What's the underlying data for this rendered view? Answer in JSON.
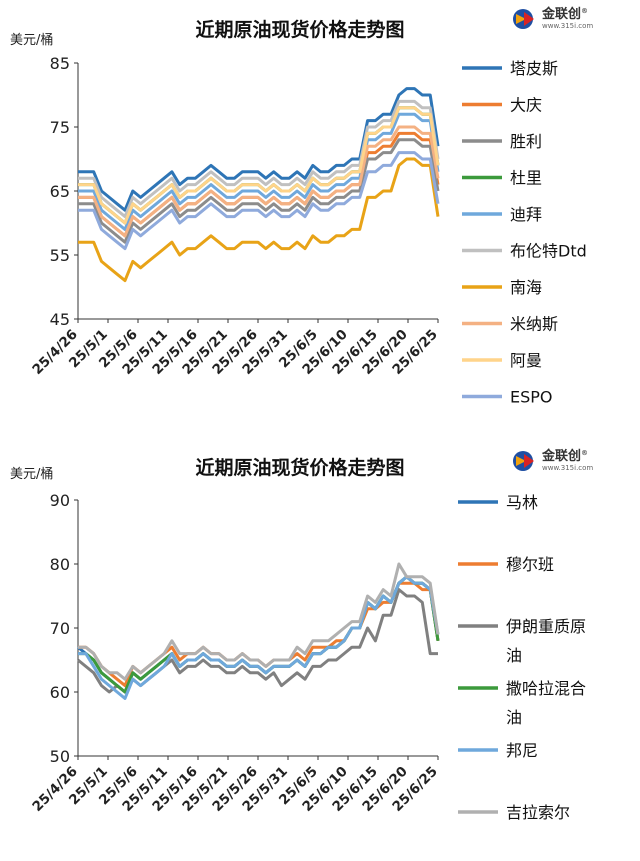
{
  "logo": {
    "text": "金联创",
    "url": "www.315i.com",
    "reg": "®"
  },
  "chart_data": [
    {
      "type": "line",
      "title": "近期原油现货价格走势图",
      "ylabel": "美元/桶",
      "xlabel": "",
      "ylim": [
        45,
        85
      ],
      "yticks": [
        45,
        55,
        65,
        75,
        85
      ],
      "legend_position": "right",
      "grid": false,
      "x_tick_labels": [
        "25/4/26",
        "25/5/1",
        "25/5/6",
        "25/5/11",
        "25/5/16",
        "25/5/21",
        "25/5/26",
        "25/5/31",
        "25/6/5",
        "25/6/10",
        "25/6/15",
        "25/6/20",
        "25/6/25"
      ],
      "series": [
        {
          "name": "塔皮斯",
          "color": "#2E75B6",
          "values": [
            68,
            68,
            68,
            65,
            64,
            63,
            62,
            65,
            64,
            65,
            66,
            67,
            68,
            66,
            67,
            67,
            68,
            69,
            68,
            67,
            67,
            68,
            68,
            68,
            67,
            68,
            67,
            67,
            68,
            67,
            69,
            68,
            68,
            69,
            69,
            70,
            70,
            76,
            76,
            77,
            77,
            80,
            81,
            81,
            80,
            80,
            72
          ]
        },
        {
          "name": "大庆",
          "color": "#ED7D31",
          "values": [
            64,
            64,
            64,
            61,
            60,
            59,
            58,
            61,
            60,
            61,
            62,
            63,
            64,
            62,
            63,
            63,
            64,
            65,
            64,
            63,
            63,
            64,
            64,
            64,
            63,
            64,
            63,
            63,
            64,
            63,
            65,
            64,
            64,
            65,
            65,
            66,
            66,
            71,
            71,
            72,
            72,
            74,
            74,
            74,
            73,
            73,
            66
          ]
        },
        {
          "name": "胜利",
          "color": "#8C8C8C",
          "values": [
            63,
            63,
            63,
            60,
            59,
            58,
            57,
            60,
            59,
            60,
            61,
            62,
            63,
            61,
            62,
            62,
            63,
            64,
            63,
            62,
            62,
            63,
            63,
            63,
            62,
            63,
            62,
            62,
            63,
            62,
            64,
            63,
            63,
            64,
            64,
            65,
            65,
            70,
            70,
            71,
            71,
            73,
            73,
            73,
            72,
            72,
            65
          ]
        },
        {
          "name": "杜里",
          "color": "#3C9A3C",
          "values": [
            66,
            66,
            66,
            63,
            62,
            61,
            60,
            63,
            62,
            63,
            64,
            65,
            66,
            64,
            65,
            65,
            66,
            67,
            66,
            65,
            65,
            66,
            66,
            66,
            65,
            66,
            65,
            65,
            66,
            65,
            67,
            66,
            66,
            67,
            67,
            68,
            68,
            74,
            74,
            75,
            75,
            78,
            78,
            78,
            77,
            77,
            69
          ]
        },
        {
          "name": "迪拜",
          "color": "#6FA8DC",
          "values": [
            65,
            65,
            65,
            62,
            61,
            60,
            59,
            62,
            61,
            62,
            63,
            64,
            65,
            63,
            64,
            64,
            65,
            66,
            65,
            64,
            64,
            65,
            65,
            65,
            64,
            65,
            64,
            64,
            65,
            64,
            66,
            65,
            65,
            66,
            66,
            67,
            67,
            73,
            73,
            74,
            74,
            77,
            77,
            77,
            76,
            76,
            68
          ]
        },
        {
          "name": "布伦特Dtd",
          "color": "#C0C0C0",
          "values": [
            67,
            67,
            67,
            64,
            63,
            62,
            61,
            64,
            63,
            64,
            65,
            66,
            67,
            65,
            66,
            66,
            67,
            68,
            67,
            66,
            66,
            67,
            67,
            67,
            66,
            67,
            66,
            66,
            67,
            66,
            68,
            67,
            67,
            68,
            68,
            69,
            69,
            75,
            75,
            76,
            76,
            79,
            79,
            79,
            78,
            78,
            70
          ]
        },
        {
          "name": "南海",
          "color": "#E8A317",
          "values": [
            57,
            57,
            57,
            54,
            53,
            52,
            51,
            54,
            53,
            54,
            55,
            56,
            57,
            55,
            56,
            56,
            57,
            58,
            57,
            56,
            56,
            57,
            57,
            57,
            56,
            57,
            56,
            56,
            57,
            56,
            58,
            57,
            57,
            58,
            58,
            59,
            59,
            64,
            64,
            65,
            65,
            69,
            70,
            70,
            69,
            69,
            61
          ]
        },
        {
          "name": "米纳斯",
          "color": "#F4B183",
          "values": [
            64,
            64,
            64,
            61,
            60,
            59,
            58,
            61,
            60,
            61,
            62,
            63,
            64,
            62,
            63,
            63,
            64,
            65,
            64,
            63,
            63,
            64,
            64,
            64,
            63,
            64,
            63,
            63,
            64,
            63,
            65,
            64,
            64,
            65,
            65,
            66,
            66,
            72,
            72,
            73,
            73,
            75,
            75,
            75,
            74,
            74,
            67
          ]
        },
        {
          "name": "阿曼",
          "color": "#FFD48A",
          "values": [
            66,
            66,
            66,
            63,
            62,
            61,
            60,
            63,
            62,
            63,
            64,
            65,
            66,
            64,
            65,
            65,
            66,
            67,
            66,
            65,
            65,
            66,
            66,
            66,
            65,
            66,
            65,
            65,
            66,
            65,
            67,
            66,
            66,
            67,
            67,
            68,
            68,
            74,
            74,
            75,
            75,
            78,
            78,
            78,
            77,
            77,
            69
          ]
        },
        {
          "name": "ESPO",
          "color": "#8FAADC",
          "values": [
            62,
            62,
            62,
            59,
            58,
            57,
            56,
            59,
            58,
            59,
            60,
            61,
            62,
            60,
            61,
            61,
            62,
            63,
            62,
            61,
            61,
            62,
            62,
            62,
            61,
            62,
            61,
            61,
            62,
            61,
            63,
            62,
            62,
            63,
            63,
            64,
            64,
            68,
            68,
            69,
            69,
            71,
            71,
            71,
            70,
            70,
            63
          ]
        }
      ]
    },
    {
      "type": "line",
      "title": "近期原油现货价格走势图",
      "ylabel": "美元/桶",
      "xlabel": "",
      "ylim": [
        50,
        90
      ],
      "yticks": [
        50,
        60,
        70,
        80,
        90
      ],
      "legend_position": "right",
      "grid": false,
      "x_tick_labels": [
        "25/4/26",
        "25/5/1",
        "25/5/6",
        "25/5/11",
        "25/5/16",
        "25/5/21",
        "25/5/26",
        "25/5/31",
        "25/6/5",
        "25/6/10",
        "25/6/15",
        "25/6/20",
        "25/6/25"
      ],
      "series": [
        {
          "name": "马林",
          "color": "#2E75B6",
          "values": [
            67,
            66,
            65,
            63,
            62,
            61,
            60,
            63,
            62,
            63,
            64,
            65,
            66,
            64,
            65,
            65,
            66,
            65,
            65,
            64,
            64,
            65,
            64,
            64,
            63,
            64,
            64,
            64,
            65,
            64,
            66,
            66,
            67,
            67,
            68,
            70,
            70,
            74,
            73,
            75,
            74,
            77,
            78,
            77,
            77,
            76,
            68
          ]
        },
        {
          "name": "穆尔班",
          "color": "#ED7D31",
          "values": [
            67,
            67,
            66,
            64,
            63,
            62,
            61,
            64,
            63,
            64,
            65,
            66,
            67,
            65,
            66,
            66,
            67,
            66,
            66,
            65,
            65,
            66,
            65,
            65,
            64,
            65,
            65,
            65,
            66,
            65,
            67,
            67,
            67,
            68,
            68,
            70,
            70,
            73,
            73,
            74,
            74,
            77,
            77,
            77,
            76,
            76,
            68
          ]
        },
        {
          "name": "伊朗重质原油",
          "color": "#808080",
          "values": [
            65,
            64,
            63,
            61,
            60,
            61,
            60,
            62,
            61,
            62,
            63,
            64,
            65,
            63,
            64,
            64,
            65,
            64,
            64,
            63,
            63,
            64,
            63,
            63,
            62,
            63,
            61,
            62,
            63,
            62,
            64,
            64,
            65,
            65,
            66,
            67,
            67,
            70,
            68,
            72,
            72,
            76,
            75,
            75,
            74,
            66,
            66
          ]
        },
        {
          "name": "撒哈拉混合油",
          "color": "#3C9A3C",
          "values": [
            66,
            66,
            65,
            63,
            62,
            61,
            60,
            63,
            62,
            63,
            64,
            65,
            66,
            64,
            65,
            65,
            66,
            65,
            65,
            64,
            64,
            65,
            64,
            64,
            63,
            64,
            64,
            64,
            65,
            64,
            66,
            66,
            67,
            67,
            68,
            70,
            70,
            74,
            73,
            75,
            74,
            77,
            78,
            77,
            77,
            76,
            68
          ]
        },
        {
          "name": "邦尼",
          "color": "#6FA8DC",
          "values": [
            66,
            66,
            64,
            62,
            61,
            60,
            59,
            62,
            61,
            62,
            63,
            64,
            66,
            64,
            65,
            65,
            66,
            65,
            65,
            64,
            64,
            65,
            64,
            64,
            63,
            64,
            64,
            64,
            65,
            64,
            66,
            66,
            67,
            67,
            68,
            70,
            70,
            74,
            73,
            75,
            74,
            77,
            78,
            77,
            77,
            76,
            69
          ]
        },
        {
          "name": "吉拉索尔",
          "color": "#B0B0B0",
          "values": [
            67,
            67,
            66,
            64,
            63,
            63,
            62,
            64,
            63,
            64,
            65,
            66,
            68,
            66,
            66,
            66,
            67,
            66,
            66,
            65,
            65,
            66,
            65,
            65,
            64,
            65,
            65,
            65,
            67,
            66,
            68,
            68,
            68,
            69,
            70,
            71,
            71,
            75,
            74,
            76,
            75,
            80,
            78,
            78,
            78,
            77,
            69
          ]
        }
      ]
    }
  ]
}
